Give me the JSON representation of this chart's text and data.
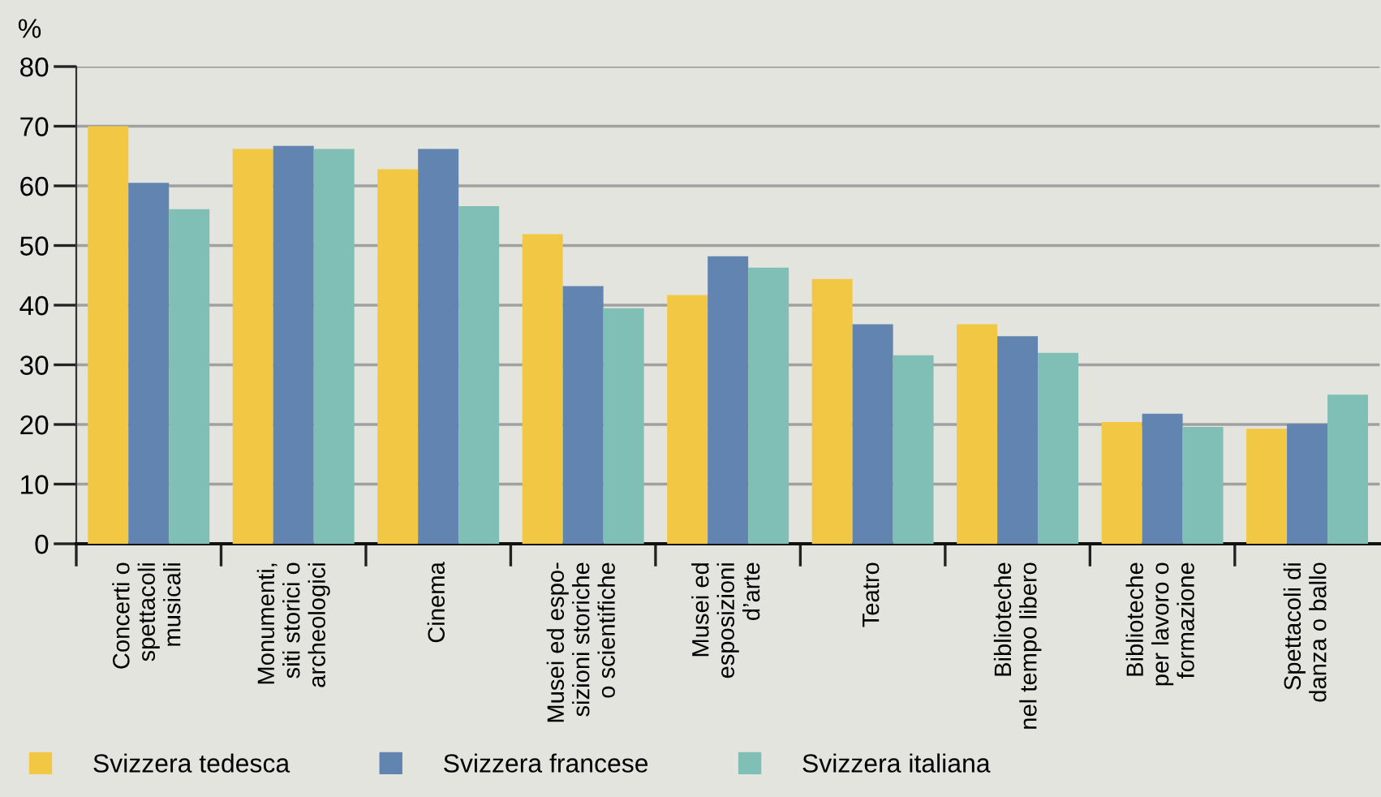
{
  "chart_data": {
    "type": "bar",
    "ylabel": "%",
    "categories": [
      "Concerti o\nspettacoli\nmusicali",
      "Monumenti,\nsiti storici o\narcheologici",
      "Cinema",
      "Musei ed espo-\nsizioni storiche\no scientifiche",
      "Musei ed\nesposizioni\nd’arte",
      "Teatro",
      "Biblioteche\nnel tempo libero",
      "Biblioteche\nper lavoro o\nformazione",
      "Spettacoli di\ndanza o ballo"
    ],
    "series": [
      {
        "name": "Svizzera tedesca",
        "color": "#f2c744",
        "values": [
          70.0,
          66.2,
          62.8,
          51.9,
          41.7,
          44.4,
          36.8,
          20.4,
          19.3
        ]
      },
      {
        "name": "Svizzera francese",
        "color": "#6284b0",
        "values": [
          60.5,
          66.7,
          66.2,
          43.2,
          48.2,
          36.8,
          34.8,
          21.8,
          20.1
        ]
      },
      {
        "name": "Svizzera italiana",
        "color": "#80bfb5",
        "values": [
          56.1,
          66.2,
          56.6,
          39.5,
          46.3,
          31.6,
          32.0,
          19.6,
          25.0
        ]
      }
    ],
    "ylim": [
      0,
      80
    ],
    "yticks": [
      0,
      10,
      20,
      30,
      40,
      50,
      60,
      70,
      80
    ],
    "grid": "y",
    "legend": "bottom left"
  }
}
